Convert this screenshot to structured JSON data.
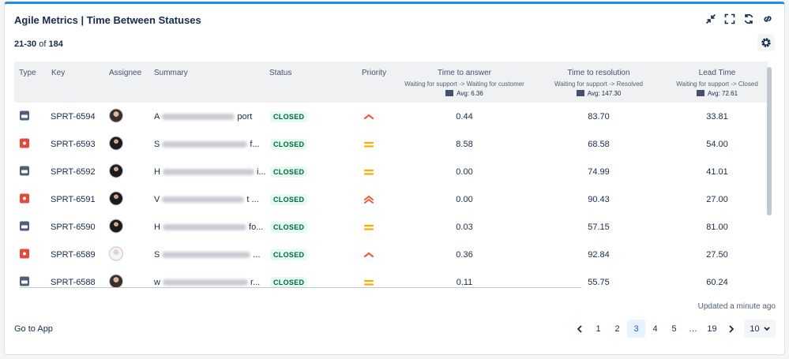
{
  "header": {
    "title": "Agile Metrics | Time Between Statuses"
  },
  "range": {
    "start": "21",
    "end": "30",
    "of": "of",
    "total": "184"
  },
  "columns": {
    "type": "Type",
    "key": "Key",
    "assignee": "Assignee",
    "summary": "Summary",
    "status": "Status",
    "priority": "Priority",
    "time_to_answer": {
      "label": "Time to answer",
      "sub": "Waiting for support -> Waiting for customer",
      "avg": "Avg: 6.36"
    },
    "time_to_resolution": {
      "label": "Time to resolution",
      "sub": "Waiting for support -> Resolved",
      "avg": "Avg: 147.30"
    },
    "lead_time": {
      "label": "Lead Time",
      "sub": "Waiting for support -> Closed",
      "avg": "Avg: 72.61"
    }
  },
  "rows": [
    {
      "type": "service-request-icon",
      "key": "SPRT-6594",
      "assignee": "avatar-woman",
      "summary_start": "A",
      "summary_end": "port",
      "status": "CLOSED",
      "priority": "high-icon",
      "answer": "0.44",
      "resolution": "83.70",
      "lead": "33.81"
    },
    {
      "type": "bug-icon",
      "key": "SPRT-6593",
      "assignee": "avatar-man",
      "summary_start": "S",
      "summary_end": "f...",
      "status": "CLOSED",
      "priority": "medium-icon",
      "answer": "8.58",
      "resolution": "68.58",
      "lead": "54.00"
    },
    {
      "type": "service-request-icon",
      "key": "SPRT-6592",
      "assignee": "avatar-man",
      "summary_start": "H",
      "summary_end": "i...",
      "status": "CLOSED",
      "priority": "medium-icon",
      "answer": "0.00",
      "resolution": "74.99",
      "lead": "41.01"
    },
    {
      "type": "bug-icon",
      "key": "SPRT-6591",
      "assignee": "avatar-man",
      "summary_start": "V",
      "summary_end": "t ...",
      "status": "CLOSED",
      "priority": "highest-icon",
      "answer": "0.00",
      "resolution": "90.43",
      "lead": "27.00"
    },
    {
      "type": "service-request-icon",
      "key": "SPRT-6590",
      "assignee": "avatar-man",
      "summary_start": "H",
      "summary_end": "fo...",
      "status": "CLOSED",
      "priority": "medium-icon",
      "answer": "0.03",
      "resolution": "57.15",
      "lead": "81.00"
    },
    {
      "type": "bug-icon",
      "key": "SPRT-6589",
      "assignee": "avatar-light",
      "summary_start": "S",
      "summary_end": "...",
      "status": "CLOSED",
      "priority": "high-icon",
      "answer": "0.36",
      "resolution": "92.84",
      "lead": "27.50"
    },
    {
      "type": "service-request-icon",
      "key": "SPRT-6588",
      "assignee": "avatar-woman",
      "summary_start": "w",
      "summary_end": "r...",
      "status": "CLOSED",
      "priority": "medium-icon",
      "answer": "0.11",
      "resolution": "55.75",
      "lead": "60.24"
    }
  ],
  "footer": {
    "updated": "Updated a minute ago",
    "go_to_app": "Go to App",
    "pages": [
      "1",
      "2",
      "3",
      "4",
      "5",
      "…",
      "19"
    ],
    "current_page": "3",
    "page_size": "10"
  },
  "colors": {
    "accent": "#1f8ce6",
    "bug": "#e5493a",
    "service": "#505f79",
    "closed_bg": "#e3fcef",
    "closed_text": "#006644",
    "priority_high": "#f15b3a",
    "priority_medium": "#ffab00"
  }
}
